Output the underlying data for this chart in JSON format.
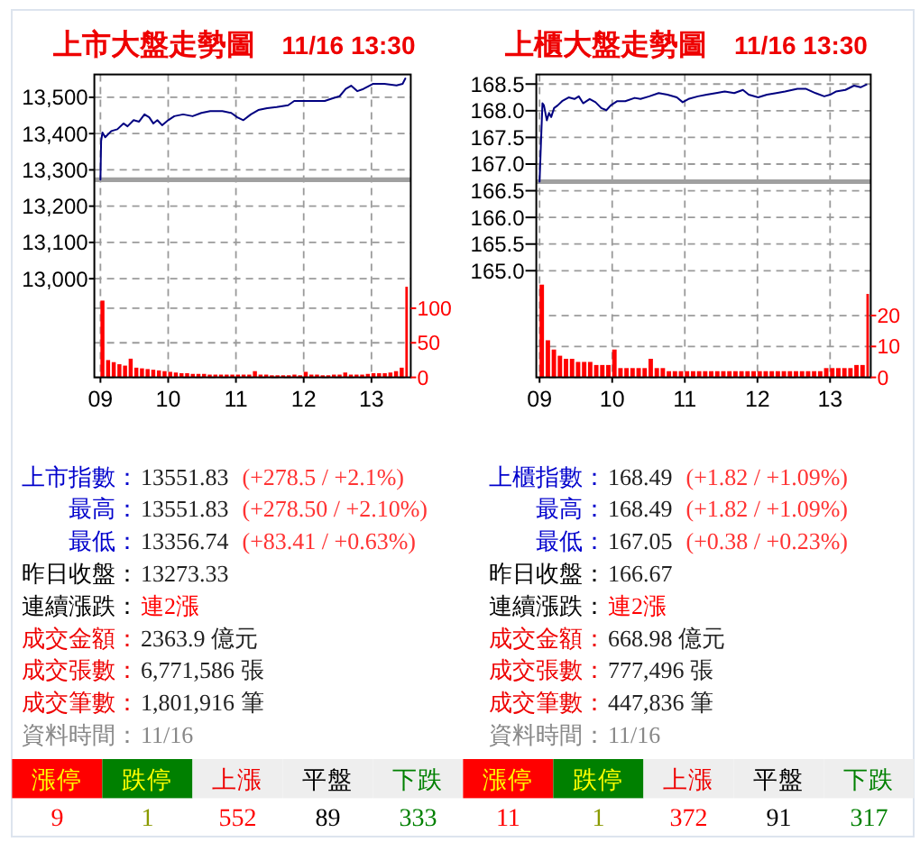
{
  "chart_data": [
    {
      "type": "line",
      "title": "上市大盤走勢圖",
      "subtitle": "11/16 13:30",
      "xlim": [
        8.91,
        13.58
      ],
      "xticks": [
        {
          "value": 9,
          "label": "09"
        },
        10,
        11,
        12,
        13
      ],
      "ylim": [
        12728,
        13563
      ],
      "yticks": [
        {
          "value": 13000,
          "label": "13,000"
        },
        {
          "value": 13100,
          "label": "13,100"
        },
        {
          "value": 13200,
          "label": "13,200"
        },
        {
          "value": 13300,
          "label": "13,300"
        },
        {
          "value": 13400,
          "label": "13,400"
        },
        {
          "value": 13500,
          "label": "13,500"
        }
      ],
      "y2lim": [
        0,
        438
      ],
      "y2ticks": [
        0,
        50,
        100
      ],
      "grid": true,
      "ref_lines": [
        {
          "axis": "y",
          "value": 13273,
          "color": "#a0a0a0"
        }
      ],
      "series": [
        {
          "type": "line",
          "color": "#000080",
          "x": [
            9,
            9.01,
            9.03,
            9.07,
            9.16,
            9.25,
            9.34,
            9.4,
            9.49,
            9.57,
            9.65,
            9.72,
            9.78,
            9.84,
            9.91,
            10,
            10.09,
            10.22,
            10.36,
            10.49,
            10.62,
            10.8,
            10.93,
            11.02,
            11.11,
            11.22,
            11.33,
            11.46,
            11.6,
            11.77,
            11.86,
            11.99,
            12.13,
            12.31,
            12.44,
            12.53,
            12.62,
            12.7,
            12.79,
            12.88,
            13.02,
            13.19,
            13.37,
            13.46,
            13.5
          ],
          "values": [
            13273,
            13380,
            13403,
            13390,
            13407,
            13412,
            13428,
            13420,
            13437,
            13433,
            13453,
            13445,
            13428,
            13437,
            13423,
            13437,
            13448,
            13453,
            13448,
            13457,
            13462,
            13462,
            13457,
            13445,
            13437,
            13453,
            13465,
            13470,
            13473,
            13478,
            13490,
            13490,
            13490,
            13490,
            13498,
            13503,
            13523,
            13532,
            13517,
            13523,
            13537,
            13537,
            13533,
            13537,
            13552
          ]
        },
        {
          "type": "bar",
          "axis": "y2",
          "color": "#ff0000",
          "x": [
            9,
            9.0833,
            9.1667,
            9.25,
            9.3333,
            9.4167,
            9.5,
            9.5833,
            9.6667,
            9.75,
            9.8333,
            9.9167,
            10,
            10.0833,
            10.1667,
            10.25,
            10.3333,
            10.4167,
            10.5,
            10.5833,
            10.6667,
            10.75,
            10.8333,
            10.9167,
            11,
            11.0833,
            11.1667,
            11.25,
            11.3333,
            11.4167,
            11.5,
            11.5833,
            11.6667,
            11.75,
            11.8333,
            11.9167,
            12,
            12.0833,
            12.1667,
            12.25,
            12.3333,
            12.4167,
            12.5,
            12.5833,
            12.6667,
            12.75,
            12.8333,
            12.9167,
            13,
            13.0833,
            13.1667,
            13.25,
            13.3333,
            13.4167,
            13.5
          ],
          "values": [
            111,
            25,
            22,
            19,
            17,
            27,
            14,
            13,
            12,
            11,
            10,
            9,
            8,
            7,
            6,
            6,
            5,
            5,
            5,
            4,
            4,
            4,
            4,
            4,
            4,
            4,
            4,
            9,
            4,
            4,
            3,
            3,
            3,
            3,
            4,
            3,
            8,
            4,
            4,
            3,
            3,
            4,
            4,
            7,
            4,
            4,
            4,
            5,
            6,
            6,
            6,
            7,
            9,
            14,
            131
          ]
        }
      ]
    },
    {
      "type": "line",
      "title": "上櫃大盤走勢圖",
      "subtitle": "11/16 13:30",
      "xlim": [
        8.955,
        13.56
      ],
      "xticks": [
        {
          "value": 9,
          "label": "09"
        },
        10,
        11,
        12,
        13
      ],
      "ylim": [
        163,
        168.68
      ],
      "yticks": [
        {
          "value": 165,
          "label": "165.0"
        },
        165.5,
        {
          "value": 166,
          "label": "166.0"
        },
        166.5,
        {
          "value": 167,
          "label": "167.0"
        },
        167.5,
        {
          "value": 168,
          "label": "168.0"
        },
        168.5
      ],
      "y2lim": [
        0,
        98
      ],
      "y2ticks": [
        0,
        10,
        20
      ],
      "grid": true,
      "ref_lines": [
        {
          "axis": "y",
          "value": 166.67,
          "color": "#a0a0a0"
        }
      ],
      "series": [
        {
          "type": "line",
          "color": "#000080",
          "x": [
            9,
            9.02,
            9.04,
            9.06,
            9.1,
            9.13,
            9.16,
            9.2,
            9.25,
            9.31,
            9.4,
            9.48,
            9.54,
            9.6,
            9.69,
            9.77,
            9.85,
            9.92,
            9.98,
            10.07,
            10.18,
            10.31,
            10.39,
            10.51,
            10.64,
            10.76,
            10.89,
            10.97,
            11.05,
            11.18,
            11.3,
            11.43,
            11.55,
            11.68,
            11.8,
            11.88,
            12.01,
            12.13,
            12.26,
            12.38,
            12.55,
            12.67,
            12.8,
            12.92,
            13,
            13.08,
            13.21,
            13.33,
            13.42,
            13.5
          ],
          "values": [
            166.67,
            167.43,
            168.14,
            168.1,
            167.82,
            167.96,
            167.88,
            168.05,
            168.1,
            168.18,
            168.25,
            168.22,
            168.27,
            168.14,
            168.22,
            168.16,
            168.05,
            168.01,
            168.1,
            168.18,
            168.18,
            168.24,
            168.22,
            168.27,
            168.33,
            168.3,
            168.25,
            168.16,
            168.22,
            168.27,
            168.3,
            168.33,
            168.36,
            168.33,
            168.39,
            168.3,
            168.25,
            168.3,
            168.33,
            168.36,
            168.41,
            168.41,
            168.33,
            168.27,
            168.3,
            168.36,
            168.39,
            168.47,
            168.44,
            168.49
          ]
        },
        {
          "type": "bar",
          "axis": "y2",
          "color": "#ff0000",
          "x": [
            9,
            9.0833,
            9.1667,
            9.25,
            9.3333,
            9.4167,
            9.5,
            9.5833,
            9.6667,
            9.75,
            9.8333,
            9.9167,
            10,
            10.0833,
            10.1667,
            10.25,
            10.3333,
            10.4167,
            10.5,
            10.5833,
            10.6667,
            10.75,
            10.8333,
            10.9167,
            11,
            11.0833,
            11.1667,
            11.25,
            11.3333,
            11.4167,
            11.5,
            11.5833,
            11.6667,
            11.75,
            11.8333,
            11.9167,
            12,
            12.0833,
            12.1667,
            12.25,
            12.3333,
            12.4167,
            12.5,
            12.5833,
            12.6667,
            12.75,
            12.8333,
            12.9167,
            13,
            13.0833,
            13.1667,
            13.25,
            13.3333,
            13.4167,
            13.5
          ],
          "values": [
            30,
            12,
            9,
            7,
            6,
            6,
            5,
            5,
            5,
            4,
            4,
            4,
            9,
            3,
            3,
            3,
            3,
            3,
            6,
            3,
            3,
            2,
            2,
            2,
            2,
            2,
            2,
            2,
            2,
            2,
            2,
            2,
            2,
            2,
            2,
            2,
            2,
            2,
            2,
            2,
            2,
            2,
            2,
            2,
            2,
            2,
            2,
            3,
            3,
            3,
            3,
            3,
            4,
            4,
            27
          ]
        }
      ]
    },
    {
      "type": "other",
      "annotations": [
        "上市指數：",
        "13551.83",
        "(+278.5 / +2.1%)",
        "最高：",
        "13551.83",
        "(+278.50 / +2.10%)",
        "最低：",
        "13356.74",
        "(+83.41 / +0.63%)",
        "昨日收盤：",
        "13273.33",
        "連續漲跌：",
        "連2漲",
        "成交金額：",
        "2363.9 億元",
        "成交張數：",
        "6,771,586 張",
        "成交筆數：",
        "1,801,916 筆",
        "資料時間：",
        "11/16"
      ],
      "categories": [
        "漲停",
        "跌停",
        "上漲",
        "平盤",
        "下跌"
      ],
      "values": [
        9,
        1,
        552,
        89,
        333
      ],
      "colors": [
        "#ff0000",
        "#008000",
        "#eeeeee",
        "#eeeeee",
        "#eeeeee"
      ],
      "data_labels": true
    },
    {
      "type": "other",
      "annotations": [
        "上櫃指數：",
        "168.49",
        "(+1.82 / +1.09%)",
        "最高：",
        "168.49",
        "(+1.82 / +1.09%)",
        "最低：",
        "167.05",
        "(+0.38 / +0.23%)",
        "昨日收盤：",
        "166.67",
        "連續漲跌：",
        "連2漲",
        "成交金額：",
        "668.98 億元",
        "成交張數：",
        "777,496 張",
        "成交筆數：",
        "447,836 筆",
        "資料時間：",
        "11/16"
      ],
      "categories": [
        "漲停",
        "跌停",
        "上漲",
        "平盤",
        "下跌"
      ],
      "values": [
        11,
        1,
        372,
        91,
        317
      ],
      "colors": [
        "#ff0000",
        "#008000",
        "#eeeeee",
        "#eeeeee",
        "#eeeeee"
      ],
      "data_labels": true
    }
  ]
}
